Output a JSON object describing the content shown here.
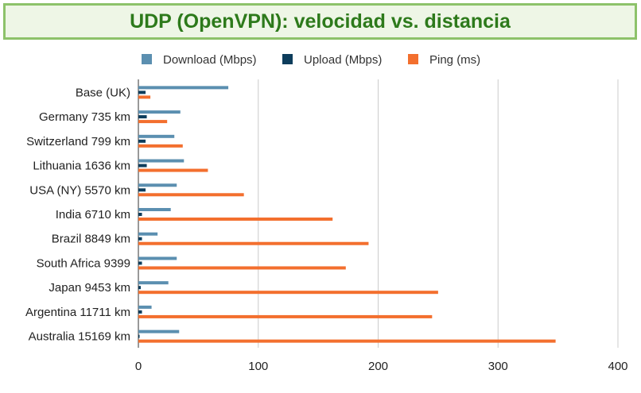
{
  "chart_data": {
    "type": "bar",
    "orientation": "horizontal",
    "title": "UDP (OpenVPN): velocidad vs. distancia",
    "categories": [
      "Base (UK)",
      "Germany 735 km",
      "Switzerland 799 km",
      "Lithuania 1636 km",
      "USA (NY) 5570 km",
      "India 6710 km",
      "Brazil 8849 km",
      "South Africa 9399",
      "Japan 9453 km",
      "Argentina 11711 km",
      "Australia 15169 km"
    ],
    "series": [
      {
        "name": "Download (Mbps)",
        "color": "#5b8fb0",
        "values": [
          75,
          35,
          30,
          38,
          32,
          27,
          16,
          32,
          25,
          11,
          34
        ]
      },
      {
        "name": "Upload (Mbps)",
        "color": "#0d3d5c",
        "values": [
          6,
          7,
          6,
          7,
          6,
          3,
          3,
          3,
          2,
          3,
          1
        ]
      },
      {
        "name": "Ping (ms)",
        "color": "#f36f2e",
        "values": [
          10,
          24,
          37,
          58,
          88,
          162,
          192,
          173,
          250,
          245,
          348
        ]
      }
    ],
    "xlim": [
      0,
      400
    ],
    "xticks": [
      "0",
      "100",
      "200",
      "300",
      "400"
    ],
    "grid": true,
    "legend_position": "top"
  }
}
